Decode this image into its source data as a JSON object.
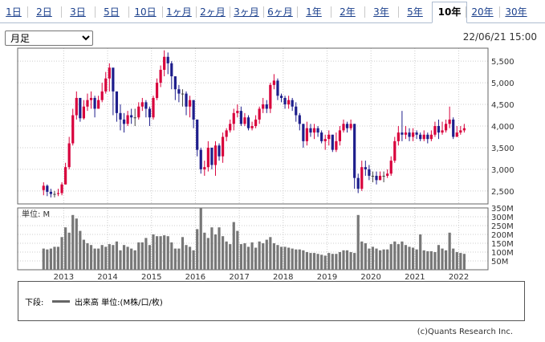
{
  "tabs": [
    {
      "label": "1日"
    },
    {
      "label": "2日"
    },
    {
      "label": "3日"
    },
    {
      "label": "5日"
    },
    {
      "label": "10日"
    },
    {
      "label": "1ヶ月"
    },
    {
      "label": "2ヶ月"
    },
    {
      "label": "3ヶ月"
    },
    {
      "label": "6ヶ月"
    },
    {
      "label": "1年"
    },
    {
      "label": "2年"
    },
    {
      "label": "3年"
    },
    {
      "label": "5年"
    },
    {
      "label": "10年",
      "active": true
    },
    {
      "label": "20年"
    },
    {
      "label": "30年"
    }
  ],
  "period_select": {
    "value": "月足"
  },
  "timestamp": "22/06/21 15:00",
  "volume_panel": {
    "unit_label": "単位: M"
  },
  "legend": {
    "lower_label": "下段:",
    "series_text": "出来高 単位:(M株/口/枚)",
    "swatch_color": "#666666"
  },
  "copyright": "(c)Quants Research Inc.",
  "colors": {
    "up": "#d8003c",
    "down": "#1e1e8c",
    "volume": "#777777",
    "grid": "#cccccc"
  },
  "chart_data": [
    {
      "type": "candlestick",
      "x_start": "2012-07",
      "x_end": "2022-06",
      "ylim": [
        2200,
        5800
      ],
      "yticks": [
        2500,
        3000,
        3500,
        4000,
        4500,
        5000,
        5500
      ],
      "ytick_labels": [
        "2,500",
        "3,000",
        "3,500",
        "4,000",
        "4,500",
        "5,000",
        "5,500"
      ],
      "x_tick_labels": [
        "2013",
        "2014",
        "2015",
        "2016",
        "2017",
        "2018",
        "2019",
        "2020",
        "2021",
        "2022"
      ],
      "close": [
        2620,
        2480,
        2430,
        2430,
        2450,
        2650,
        3050,
        3600,
        4250,
        4650,
        4180,
        4450,
        4600,
        4650,
        4400,
        4600,
        4800,
        5100,
        5350,
        4800,
        4300,
        4150,
        4050,
        4250,
        4200,
        4200,
        4450,
        4550,
        4400,
        4200,
        4650,
        5000,
        5300,
        5600,
        5450,
        5150,
        4850,
        4750,
        4750,
        4450,
        4600,
        4150,
        3450,
        3000,
        3050,
        3500,
        3100,
        3550,
        3300,
        3750,
        3900,
        4050,
        4300,
        4350,
        4050,
        4200,
        3950,
        4000,
        4150,
        4400,
        4500,
        4400,
        4950,
        5050,
        4700,
        4650,
        4500,
        4600,
        4450,
        4250,
        4050,
        3650,
        3950,
        3850,
        3950,
        3850,
        3650,
        3700,
        3800,
        3450,
        3650,
        3900,
        4050,
        3950,
        4050,
        2800,
        2550,
        3050,
        3000,
        2850,
        2850,
        2750,
        2850,
        2850,
        2900,
        3200,
        3650,
        3850,
        3800,
        3850,
        3750,
        3850,
        3800,
        3700,
        3800,
        3700,
        3800,
        4000,
        3850,
        3900,
        4050,
        4150,
        3750,
        3850,
        3900,
        3950
      ],
      "high": [
        2700,
        2650,
        2550,
        2500,
        2550,
        2700,
        3150,
        3750,
        4400,
        4800,
        4650,
        4600,
        4750,
        4800,
        4700,
        4700,
        5000,
        5250,
        5450,
        5300,
        4800,
        4500,
        4300,
        4350,
        4400,
        4400,
        4550,
        4650,
        4600,
        4450,
        4700,
        5100,
        5400,
        5750,
        5700,
        5500,
        5150,
        4950,
        4850,
        4800,
        4700,
        4600,
        4150,
        3500,
        3200,
        3650,
        3500,
        3650,
        3600,
        3850,
        3950,
        4150,
        4400,
        4500,
        4450,
        4300,
        4250,
        4100,
        4250,
        4450,
        4650,
        4600,
        5000,
        5200,
        5100,
        4750,
        4700,
        4700,
        4650,
        4550,
        4300,
        4050,
        4100,
        4050,
        4050,
        4000,
        3900,
        3800,
        3900,
        3800,
        3850,
        4000,
        4150,
        4100,
        4150,
        4050,
        2900,
        3200,
        3200,
        3100,
        2950,
        2950,
        2950,
        2950,
        3000,
        3300,
        3750,
        4000,
        4350,
        4000,
        3950,
        3950,
        3900,
        3850,
        3900,
        3850,
        3900,
        4100,
        4150,
        4100,
        4150,
        4450,
        4200,
        4000,
        4000,
        4050
      ],
      "low": [
        2400,
        2380,
        2350,
        2350,
        2380,
        2400,
        2650,
        3000,
        3550,
        4150,
        4100,
        4150,
        4350,
        4400,
        4200,
        4400,
        4550,
        4750,
        4800,
        4250,
        4100,
        3900,
        3850,
        4000,
        4050,
        4000,
        4150,
        4350,
        4200,
        4000,
        4150,
        4600,
        4900,
        5150,
        5200,
        4850,
        4600,
        4550,
        4450,
        4250,
        4200,
        3950,
        3300,
        2900,
        2850,
        2950,
        3000,
        2850,
        3200,
        3150,
        3650,
        3850,
        3900,
        4200,
        4000,
        4000,
        3900,
        3900,
        3950,
        4050,
        4300,
        4300,
        4300,
        4850,
        4600,
        4550,
        4400,
        4400,
        4350,
        4100,
        3900,
        3500,
        3550,
        3750,
        3700,
        3750,
        3600,
        3450,
        3550,
        3400,
        3400,
        3550,
        3850,
        3850,
        3900,
        2550,
        2450,
        2500,
        2850,
        2750,
        2700,
        2650,
        2750,
        2700,
        2800,
        2850,
        3150,
        3550,
        3650,
        3700,
        3650,
        3650,
        3700,
        3650,
        3650,
        3600,
        3650,
        3750,
        3700,
        3800,
        3850,
        3950,
        3700,
        3750,
        3800,
        3850
      ],
      "direction": [
        "up",
        "down",
        "down",
        "flat",
        "up",
        "up",
        "up",
        "up",
        "up",
        "up",
        "down",
        "up",
        "up",
        "up",
        "down",
        "up",
        "up",
        "up",
        "up",
        "down",
        "down",
        "down",
        "down",
        "up",
        "down",
        "flat",
        "up",
        "up",
        "down",
        "down",
        "up",
        "up",
        "up",
        "up",
        "down",
        "down",
        "down",
        "down",
        "flat",
        "down",
        "up",
        "down",
        "down",
        "down",
        "up",
        "up",
        "down",
        "up",
        "down",
        "up",
        "up",
        "up",
        "up",
        "up",
        "down",
        "up",
        "down",
        "up",
        "up",
        "up",
        "up",
        "down",
        "up",
        "up",
        "down",
        "down",
        "down",
        "up",
        "down",
        "down",
        "down",
        "down",
        "up",
        "down",
        "up",
        "down",
        "down",
        "up",
        "up",
        "down",
        "up",
        "up",
        "up",
        "down",
        "up",
        "down",
        "down",
        "up",
        "down",
        "down",
        "flat",
        "down",
        "up",
        "flat",
        "up",
        "up",
        "up",
        "up",
        "down",
        "up",
        "down",
        "up",
        "down",
        "down",
        "up",
        "down",
        "up",
        "up",
        "down",
        "up",
        "up",
        "up",
        "down",
        "up",
        "up",
        "up"
      ]
    },
    {
      "type": "bar",
      "title": "出来高",
      "ylabel": "単位: M",
      "ylim": [
        0,
        350
      ],
      "yticks": [
        50,
        100,
        150,
        200,
        250,
        300,
        350
      ],
      "ytick_labels": [
        "50M",
        "100M",
        "150M",
        "200M",
        "250M",
        "300M",
        "350M"
      ],
      "values": [
        120,
        115,
        120,
        130,
        130,
        185,
        240,
        210,
        310,
        290,
        220,
        170,
        150,
        140,
        120,
        120,
        140,
        130,
        145,
        140,
        160,
        110,
        140,
        130,
        120,
        110,
        155,
        155,
        180,
        140,
        200,
        190,
        190,
        195,
        190,
        155,
        120,
        120,
        185,
        140,
        130,
        110,
        230,
        350,
        210,
        180,
        240,
        200,
        240,
        190,
        160,
        145,
        270,
        220,
        145,
        150,
        130,
        155,
        125,
        160,
        150,
        170,
        185,
        150,
        140,
        130,
        130,
        125,
        120,
        115,
        115,
        110,
        100,
        95,
        95,
        90,
        85,
        80,
        95,
        90,
        90,
        100,
        110,
        110,
        100,
        95,
        310,
        160,
        150,
        120,
        130,
        120,
        110,
        115,
        115,
        145,
        160,
        145,
        160,
        140,
        130,
        125,
        115,
        200,
        110,
        105,
        105,
        100,
        140,
        120,
        110,
        210,
        120,
        100,
        95,
        90
      ]
    }
  ]
}
